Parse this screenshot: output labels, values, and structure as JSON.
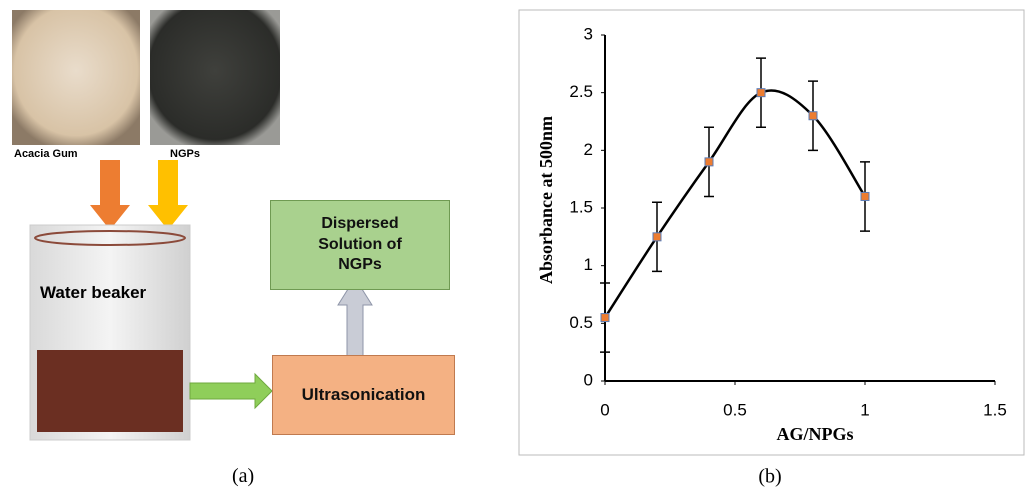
{
  "diagram": {
    "photo_labels": [
      "Acacia Gum",
      "NGPs"
    ],
    "beaker_label": "Water beaker",
    "process": "Ultrasonication",
    "result": "Dispersed Solution of NGPs",
    "caption": "(a)"
  },
  "chart_data": {
    "type": "line",
    "x_label": "AG/NPGs",
    "y_label": "Absorbance at 500nm",
    "x": [
      0,
      0.2,
      0.4,
      0.6,
      0.8,
      1
    ],
    "values": [
      0.55,
      1.25,
      1.9,
      2.5,
      2.3,
      1.6
    ],
    "errors": [
      0.3,
      0.3,
      0.3,
      0.3,
      0.3,
      0.3
    ],
    "color": "#000000",
    "marker_color": "#ed7d31",
    "xlim": [
      0,
      1.5
    ],
    "ylim": [
      0,
      3
    ],
    "xticks": [
      0,
      0.5,
      1,
      1.5
    ],
    "yticks": [
      0,
      0.5,
      1,
      1.5,
      2,
      2.5,
      3
    ],
    "grid": false,
    "caption": "(b)"
  }
}
